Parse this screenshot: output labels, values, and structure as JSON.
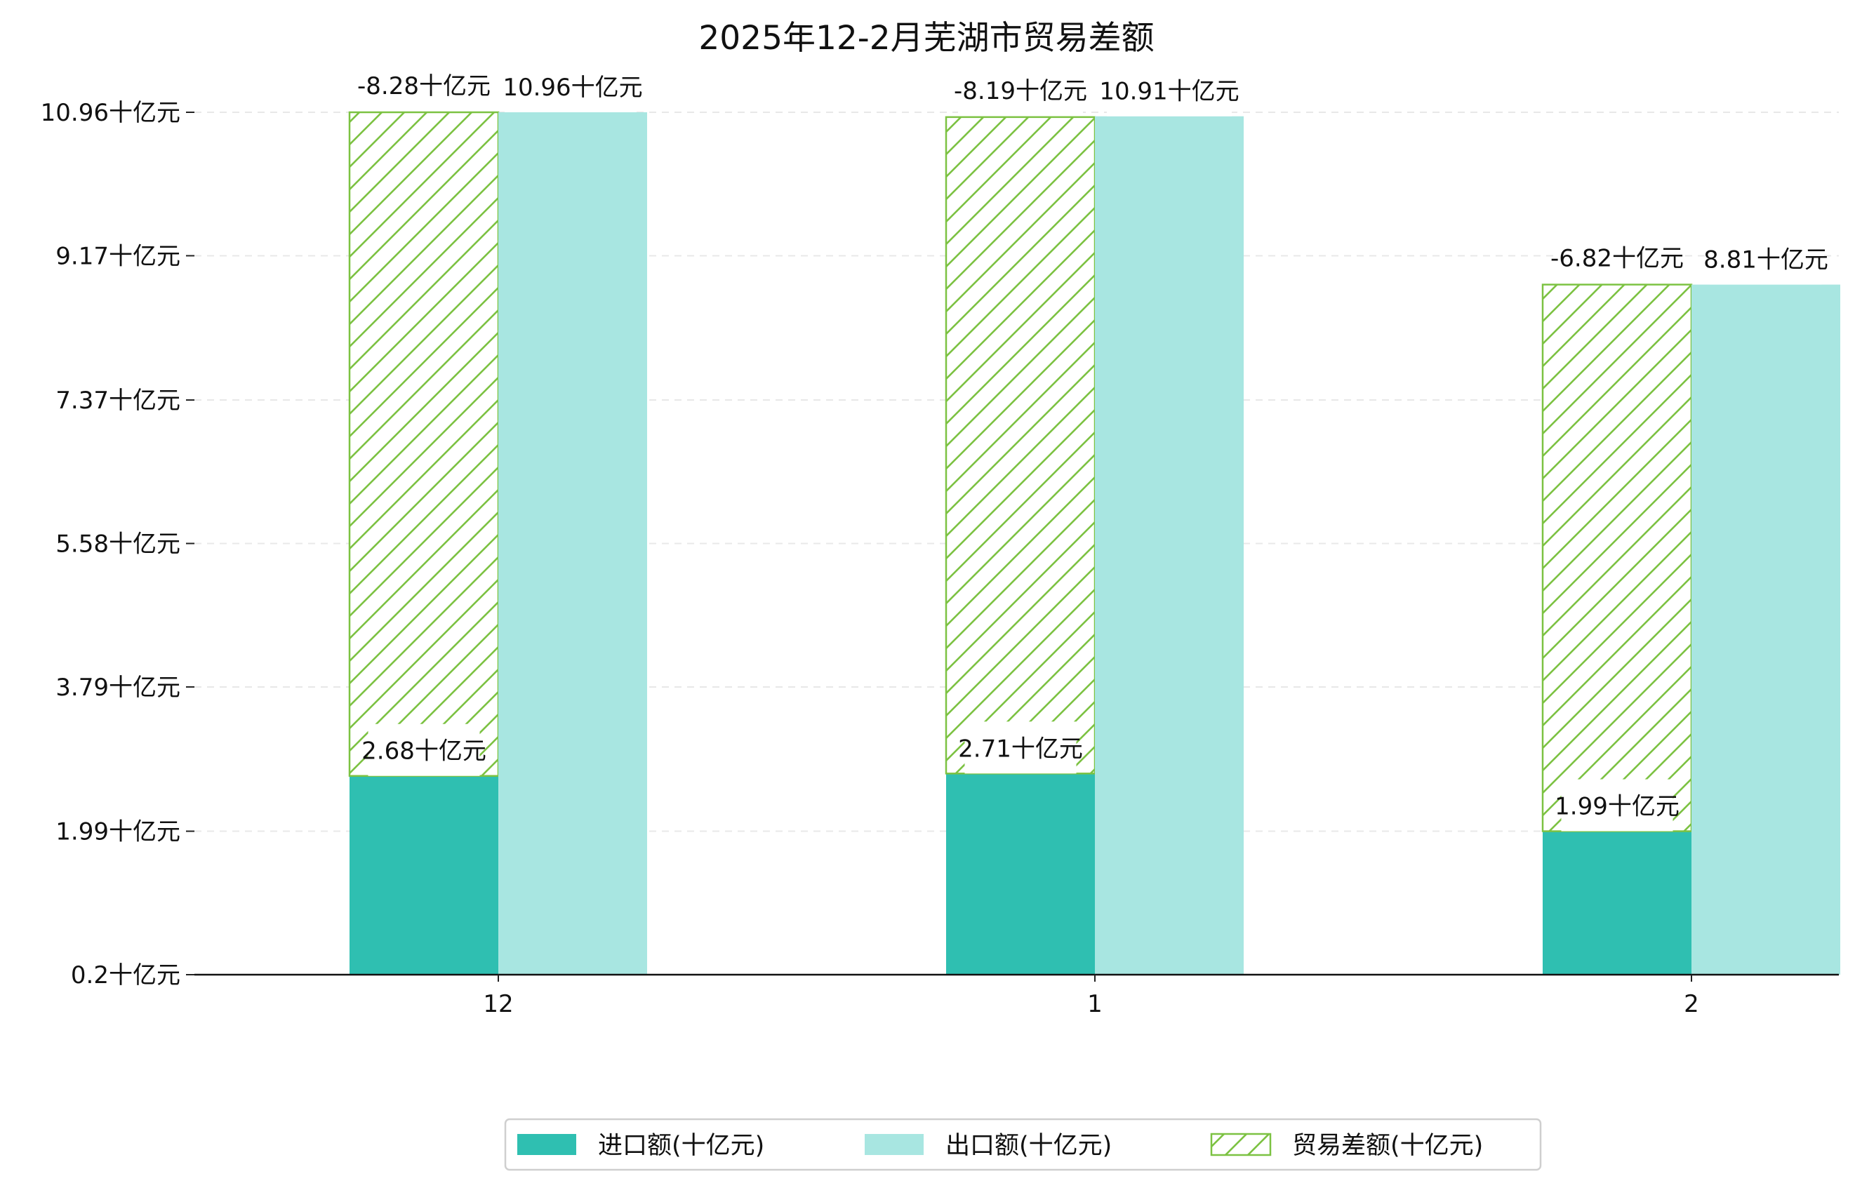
{
  "chart_data": {
    "type": "bar",
    "title": "2025年12-2月芜湖市贸易差额",
    "xlabel": "",
    "ylabel": "",
    "categories": [
      "12",
      "1",
      "2"
    ],
    "y_ticks": [
      "0.2十亿元",
      "1.99十亿元",
      "3.79十亿元",
      "5.58十亿元",
      "7.37十亿元",
      "9.17十亿元",
      "10.96十亿元"
    ],
    "y_tick_values": [
      0.2,
      1.99,
      3.79,
      5.58,
      7.37,
      9.17,
      10.96
    ],
    "ylim": [
      0.2,
      10.96
    ],
    "grid": "horizontal dashed",
    "legend_position": "bottom-center",
    "series": [
      {
        "name": "进口额(十亿元)",
        "color": "#2fbfb1",
        "values": [
          2.68,
          2.71,
          1.99
        ],
        "labels": [
          "2.68十亿元",
          "2.71十亿元",
          "1.99十亿元"
        ]
      },
      {
        "name": "出口额(十亿元)",
        "color": "#a8e6e1",
        "values": [
          10.96,
          10.91,
          8.81
        ],
        "labels": [
          "10.96十亿元",
          "10.91十亿元",
          "8.81十亿元"
        ]
      },
      {
        "name": "贸易差额(十亿元)",
        "color": "#7cc242",
        "pattern": "hatch",
        "values": [
          -8.28,
          -8.19,
          -6.82
        ],
        "labels": [
          "-8.28十亿元",
          "-8.19十亿元",
          "-6.82十亿元"
        ]
      }
    ]
  }
}
